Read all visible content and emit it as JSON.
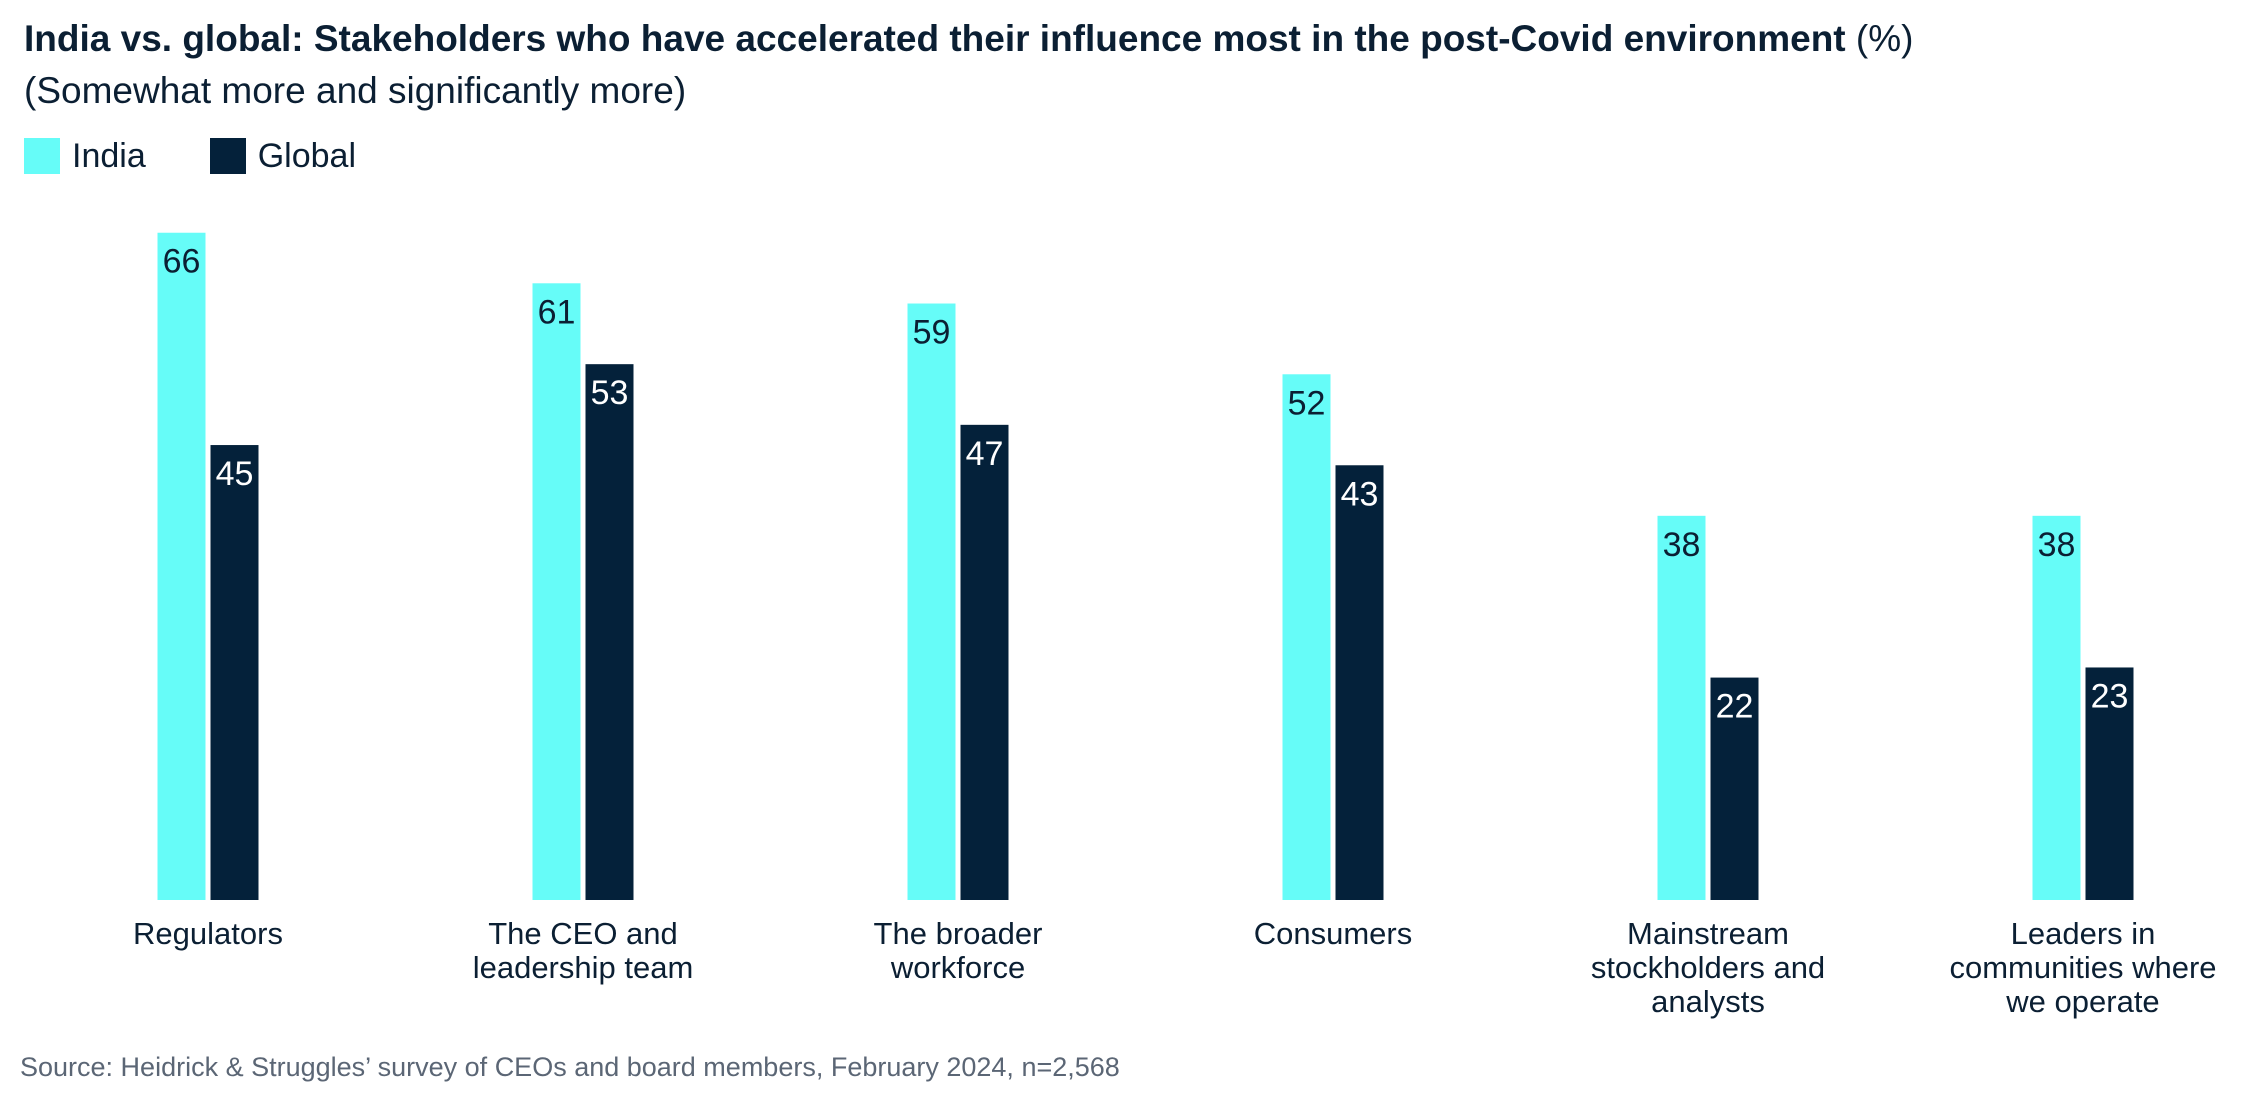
{
  "title": {
    "bold": "India vs. global: Stakeholders who have accelerated their influence most in the post-Covid environment",
    "unit": "(%)",
    "subtitle": "(Somewhat more and significantly more)"
  },
  "legend": [
    {
      "label": "India",
      "color": "#66fcf8"
    },
    {
      "label": "Global",
      "color": "#04213a"
    }
  ],
  "source": "Source: Heidrick & Struggles’ survey of CEOs and board members, February 2024, n=2,568",
  "chart_data": {
    "type": "bar",
    "title": "India vs. global: Stakeholders who have accelerated their influence most in the post-Covid environment (%)",
    "subtitle": "(Somewhat more and significantly more)",
    "xlabel": "",
    "ylabel": "",
    "ylim": [
      0,
      66
    ],
    "grid": false,
    "legend_position": "top-left",
    "categories": [
      [
        "Regulators"
      ],
      [
        "The CEO and",
        "leadership team"
      ],
      [
        "The broader",
        "workforce"
      ],
      [
        "Consumers"
      ],
      [
        "Mainstream",
        "stockholders and",
        "analysts"
      ],
      [
        "Leaders in",
        "communities where",
        "we operate"
      ]
    ],
    "series": [
      {
        "name": "India",
        "color": "#66fcf8",
        "label_color": "#0b1f33",
        "values": [
          66,
          61,
          59,
          52,
          38,
          38
        ]
      },
      {
        "name": "Global",
        "color": "#04213a",
        "label_color": "#ffffff",
        "values": [
          45,
          53,
          47,
          43,
          22,
          23
        ]
      }
    ]
  }
}
